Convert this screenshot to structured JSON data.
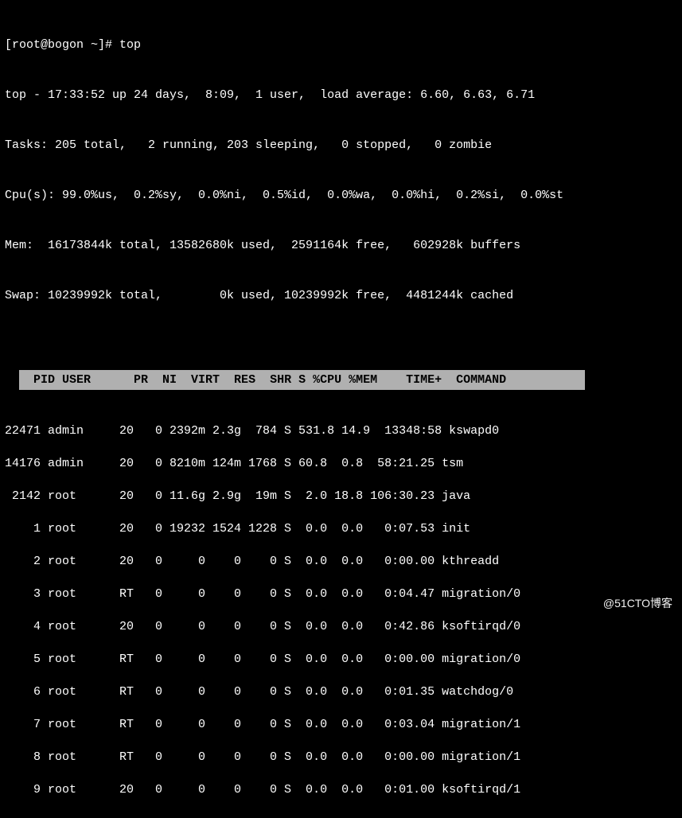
{
  "prompt": "[root@bogon ~]# top",
  "summary": {
    "line1": "top - 17:33:52 up 24 days,  8:09,  1 user,  load average: 6.60, 6.63, 6.71",
    "line2": "Tasks: 205 total,   2 running, 203 sleeping,   0 stopped,   0 zombie",
    "line3": "Cpu(s): 99.0%us,  0.2%sy,  0.0%ni,  0.5%id,  0.0%wa,  0.0%hi,  0.2%si,  0.0%st",
    "line4": "Mem:  16173844k total, 13582680k used,  2591164k free,   602928k buffers",
    "line5": "Swap: 10239992k total,        0k used, 10239992k free,  4481244k cached"
  },
  "columns": [
    "PID",
    "USER",
    "PR",
    "NI",
    "VIRT",
    "RES",
    "SHR",
    "S",
    "%CPU",
    "%MEM",
    "TIME+",
    "COMMAND"
  ],
  "headerText": "  PID USER      PR  NI  VIRT  RES  SHR S %CPU %MEM    TIME+  COMMAND           ",
  "rows": [
    {
      "pid": "22471",
      "user": "admin",
      "pr": "20",
      "ni": "0",
      "virt": "2392m",
      "res": "2.3g",
      "shr": "784",
      "s": "S",
      "cpu": "531.8",
      "mem": "14.9",
      "time": "13348:58",
      "cmd": "kswapd0",
      "text": "22471 admin     20   0 2392m 2.3g  784 S 531.8 14.9  13348:58 kswapd0"
    },
    {
      "pid": "14176",
      "user": "admin",
      "pr": "20",
      "ni": "0",
      "virt": "8210m",
      "res": "124m",
      "shr": "1768",
      "s": "S",
      "cpu": "60.8",
      "mem": "0.8",
      "time": "58:21.25",
      "cmd": "tsm",
      "text": "14176 admin     20   0 8210m 124m 1768 S 60.8  0.8  58:21.25 tsm"
    },
    {
      "pid": "2142",
      "user": "root",
      "pr": "20",
      "ni": "0",
      "virt": "11.6g",
      "res": "2.9g",
      "shr": "19m",
      "s": "S",
      "cpu": "2.0",
      "mem": "18.8",
      "time": "106:30.23",
      "cmd": "java",
      "text": " 2142 root      20   0 11.6g 2.9g  19m S  2.0 18.8 106:30.23 java"
    },
    {
      "pid": "1",
      "user": "root",
      "pr": "20",
      "ni": "0",
      "virt": "19232",
      "res": "1524",
      "shr": "1228",
      "s": "S",
      "cpu": "0.0",
      "mem": "0.0",
      "time": "0:07.53",
      "cmd": "init",
      "text": "    1 root      20   0 19232 1524 1228 S  0.0  0.0   0:07.53 init"
    },
    {
      "pid": "2",
      "user": "root",
      "pr": "20",
      "ni": "0",
      "virt": "0",
      "res": "0",
      "shr": "0",
      "s": "S",
      "cpu": "0.0",
      "mem": "0.0",
      "time": "0:00.00",
      "cmd": "kthreadd",
      "text": "    2 root      20   0     0    0    0 S  0.0  0.0   0:00.00 kthreadd"
    },
    {
      "pid": "3",
      "user": "root",
      "pr": "RT",
      "ni": "0",
      "virt": "0",
      "res": "0",
      "shr": "0",
      "s": "S",
      "cpu": "0.0",
      "mem": "0.0",
      "time": "0:04.47",
      "cmd": "migration/0",
      "text": "    3 root      RT   0     0    0    0 S  0.0  0.0   0:04.47 migration/0"
    },
    {
      "pid": "4",
      "user": "root",
      "pr": "20",
      "ni": "0",
      "virt": "0",
      "res": "0",
      "shr": "0",
      "s": "S",
      "cpu": "0.0",
      "mem": "0.0",
      "time": "0:42.86",
      "cmd": "ksoftirqd/0",
      "text": "    4 root      20   0     0    0    0 S  0.0  0.0   0:42.86 ksoftirqd/0"
    },
    {
      "pid": "5",
      "user": "root",
      "pr": "RT",
      "ni": "0",
      "virt": "0",
      "res": "0",
      "shr": "0",
      "s": "S",
      "cpu": "0.0",
      "mem": "0.0",
      "time": "0:00.00",
      "cmd": "migration/0",
      "text": "    5 root      RT   0     0    0    0 S  0.0  0.0   0:00.00 migration/0"
    },
    {
      "pid": "6",
      "user": "root",
      "pr": "RT",
      "ni": "0",
      "virt": "0",
      "res": "0",
      "shr": "0",
      "s": "S",
      "cpu": "0.0",
      "mem": "0.0",
      "time": "0:01.35",
      "cmd": "watchdog/0",
      "text": "    6 root      RT   0     0    0    0 S  0.0  0.0   0:01.35 watchdog/0"
    },
    {
      "pid": "7",
      "user": "root",
      "pr": "RT",
      "ni": "0",
      "virt": "0",
      "res": "0",
      "shr": "0",
      "s": "S",
      "cpu": "0.0",
      "mem": "0.0",
      "time": "0:03.04",
      "cmd": "migration/1",
      "text": "    7 root      RT   0     0    0    0 S  0.0  0.0   0:03.04 migration/1"
    },
    {
      "pid": "8",
      "user": "root",
      "pr": "RT",
      "ni": "0",
      "virt": "0",
      "res": "0",
      "shr": "0",
      "s": "S",
      "cpu": "0.0",
      "mem": "0.0",
      "time": "0:00.00",
      "cmd": "migration/1",
      "text": "    8 root      RT   0     0    0    0 S  0.0  0.0   0:00.00 migration/1"
    },
    {
      "pid": "9",
      "user": "root",
      "pr": "20",
      "ni": "0",
      "virt": "0",
      "res": "0",
      "shr": "0",
      "s": "S",
      "cpu": "0.0",
      "mem": "0.0",
      "time": "0:01.00",
      "cmd": "ksoftirqd/1",
      "text": "    9 root      20   0     0    0    0 S  0.0  0.0   0:01.00 ksoftirqd/1"
    }
  ],
  "watermark": "@51CTO博客",
  "colors": {
    "background": "#000000",
    "foreground": "#ffffff",
    "headerBg": "#b0b0b0",
    "headerFg": "#000000"
  }
}
